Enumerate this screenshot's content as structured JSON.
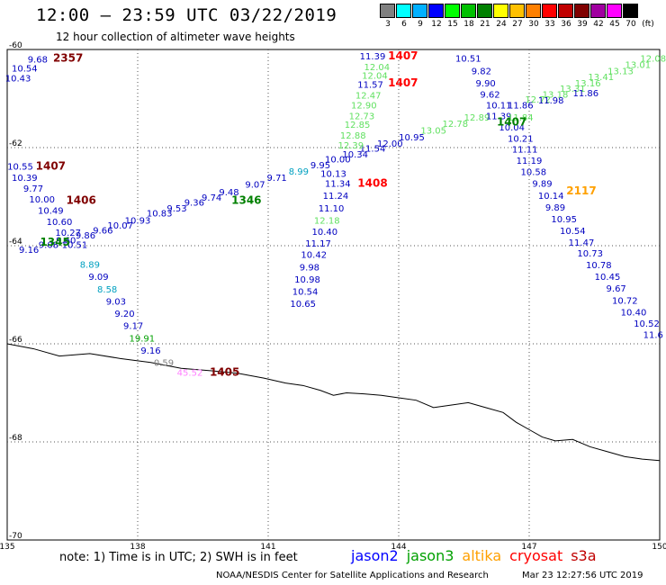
{
  "header": {
    "title": "12:00 – 23:59 UTC 03/22/2019",
    "subtitle": "12 hour collection of altimeter wave heights"
  },
  "scale": {
    "unit": "(ft)",
    "bins": [
      {
        "label": "3",
        "color": "#808080"
      },
      {
        "label": "6",
        "color": "#00ffff"
      },
      {
        "label": "9",
        "color": "#00b0ff"
      },
      {
        "label": "12",
        "color": "#0000ff"
      },
      {
        "label": "15",
        "color": "#00ff00"
      },
      {
        "label": "18",
        "color": "#00c000"
      },
      {
        "label": "21",
        "color": "#008000"
      },
      {
        "label": "24",
        "color": "#ffff00"
      },
      {
        "label": "27",
        "color": "#ffc000"
      },
      {
        "label": "30",
        "color": "#ff8000"
      },
      {
        "label": "33",
        "color": "#ff0000"
      },
      {
        "label": "36",
        "color": "#c00000"
      },
      {
        "label": "39",
        "color": "#800000"
      },
      {
        "label": "42",
        "color": "#a000a0"
      },
      {
        "label": "45",
        "color": "#ff00ff"
      },
      {
        "label": "70",
        "color": "#000000"
      }
    ]
  },
  "map": {
    "lon_min": 135,
    "lon_max": 150,
    "lat_min": -70,
    "lat_max": -60,
    "lon_ticks": [
      "135",
      "138",
      "141",
      "144",
      "147",
      "150"
    ],
    "lat_ticks": [
      "-60",
      "-62",
      "-64",
      "-66",
      "-68",
      "-70"
    ],
    "grid": true
  },
  "coastline": [
    [
      135.0,
      -66.0
    ],
    [
      135.6,
      -66.1
    ],
    [
      136.2,
      -66.25
    ],
    [
      136.9,
      -66.2
    ],
    [
      137.6,
      -66.3
    ],
    [
      138.3,
      -66.38
    ],
    [
      139.0,
      -66.5
    ],
    [
      139.7,
      -66.55
    ],
    [
      140.3,
      -66.6
    ],
    [
      140.9,
      -66.7
    ],
    [
      141.4,
      -66.8
    ],
    [
      141.8,
      -66.85
    ],
    [
      142.2,
      -66.95
    ],
    [
      142.5,
      -67.05
    ],
    [
      142.8,
      -67.0
    ],
    [
      143.2,
      -67.02
    ],
    [
      143.6,
      -67.05
    ],
    [
      144.0,
      -67.1
    ],
    [
      144.4,
      -67.15
    ],
    [
      144.8,
      -67.3
    ],
    [
      145.2,
      -67.25
    ],
    [
      145.6,
      -67.2
    ],
    [
      146.0,
      -67.3
    ],
    [
      146.4,
      -67.4
    ],
    [
      146.7,
      -67.6
    ],
    [
      147.0,
      -67.75
    ],
    [
      147.3,
      -67.9
    ],
    [
      147.6,
      -67.98
    ],
    [
      148.0,
      -67.95
    ],
    [
      148.4,
      -68.1
    ],
    [
      148.8,
      -68.2
    ],
    [
      149.2,
      -68.3
    ],
    [
      149.6,
      -68.35
    ],
    [
      150.0,
      -68.38
    ]
  ],
  "passes": [
    {
      "satellite": "jason2",
      "time": "2357",
      "time_lon": 136.4,
      "time_lat": -60.25,
      "time_color": "#800000",
      "points": [
        [
          135.7,
          -60.27,
          "9.68",
          "#0000c0"
        ],
        [
          135.4,
          -60.45,
          "10.54",
          "#0000c0"
        ],
        [
          135.25,
          -60.65,
          "10.43",
          "#0000c0"
        ]
      ]
    },
    {
      "satellite": "jason2",
      "time": "1407",
      "time_lon": 136.0,
      "time_lat": -62.45,
      "time_color": "#800000",
      "points": [
        [
          135.3,
          -62.45,
          "10.55",
          "#0000c0"
        ],
        [
          135.4,
          -62.68,
          "10.39",
          "#0000c0"
        ],
        [
          135.6,
          -62.9,
          "9.77",
          "#0000c0"
        ],
        [
          135.8,
          -63.12,
          "10.00",
          "#0000c0"
        ],
        [
          136.0,
          -63.35,
          "10.49",
          "#0000c0"
        ],
        [
          136.2,
          -63.58,
          "10.60",
          "#0000c0"
        ],
        [
          136.4,
          -63.8,
          "10.27",
          "#0000c0"
        ],
        [
          136.55,
          -64.05,
          "10.51",
          "#0000c0"
        ],
        [
          136.9,
          -64.45,
          "8.89",
          "#00a0c0"
        ],
        [
          137.1,
          -64.7,
          "9.09",
          "#0000c0"
        ],
        [
          137.3,
          -64.95,
          "8.58",
          "#00a0c0"
        ],
        [
          137.5,
          -65.2,
          "9.03",
          "#0000c0"
        ],
        [
          137.7,
          -65.45,
          "9.20",
          "#0000c0"
        ],
        [
          137.9,
          -65.7,
          "9.17",
          "#0000c0"
        ],
        [
          138.1,
          -65.95,
          "19.91",
          "#00a000"
        ],
        [
          138.3,
          -66.2,
          "9.16",
          "#0000c0"
        ],
        [
          138.6,
          -66.45,
          "0.59",
          "#808080"
        ]
      ]
    },
    {
      "satellite": "jason2",
      "time": "1406",
      "time_lon": 136.7,
      "time_lat": -63.15,
      "time_color": "#800000",
      "points": []
    },
    {
      "satellite": "jason3",
      "time": "1346",
      "time_lon": 140.5,
      "time_lat": -63.15,
      "time_color": "#008000",
      "points": [
        [
          135.5,
          -64.15,
          "9.16",
          "#0000c0"
        ],
        [
          135.95,
          -64.05,
          "9.08",
          "#0000c0"
        ],
        [
          136.35,
          -63.95,
          "9.60",
          "#0000c0"
        ],
        [
          136.8,
          -63.85,
          "9.86",
          "#0000c0"
        ],
        [
          137.2,
          -63.75,
          "9.66",
          "#0000c0"
        ],
        [
          137.6,
          -63.65,
          "10.07",
          "#0000c0"
        ],
        [
          138.0,
          -63.55,
          "10.93",
          "#0000c0"
        ],
        [
          138.5,
          -63.4,
          "10.83",
          "#0000c0"
        ],
        [
          138.9,
          -63.3,
          "9.53",
          "#0000c0"
        ],
        [
          139.3,
          -63.18,
          "9.36",
          "#0000c0"
        ],
        [
          139.7,
          -63.08,
          "9.74",
          "#0000c0"
        ],
        [
          140.1,
          -62.97,
          "9.48",
          "#0000c0"
        ],
        [
          140.7,
          -62.82,
          "9.07",
          "#0000c0"
        ],
        [
          141.2,
          -62.68,
          "9.71",
          "#0000c0"
        ],
        [
          141.7,
          -62.55,
          "8.99",
          "#00a0c0"
        ],
        [
          142.2,
          -62.42,
          "9.95",
          "#0000c0"
        ],
        [
          142.6,
          -62.3,
          "10.00",
          "#0000c0"
        ],
        [
          143.0,
          -62.2,
          "10.34",
          "#0000c0"
        ],
        [
          143.4,
          -62.08,
          "11.54",
          "#0000c0"
        ],
        [
          143.8,
          -61.98,
          "12.00",
          "#0000c0"
        ],
        [
          144.3,
          -61.85,
          "10.95",
          "#0000c0"
        ],
        [
          144.8,
          -61.72,
          "13.05",
          "#60e060"
        ],
        [
          145.3,
          -61.58,
          "12.78",
          "#60e060"
        ],
        [
          145.8,
          -61.45,
          "12.89",
          "#60e060"
        ],
        [
          147.2,
          -61.08,
          "12.72",
          "#60e060"
        ],
        [
          147.6,
          -60.98,
          "13.18",
          "#60e060"
        ],
        [
          148.0,
          -60.86,
          "13.31",
          "#60e060"
        ],
        [
          148.35,
          -60.75,
          "13.16",
          "#60e060"
        ],
        [
          148.65,
          -60.62,
          "13.41",
          "#60e060"
        ],
        [
          149.1,
          -60.5,
          "13.13",
          "#60e060"
        ],
        [
          149.5,
          -60.38,
          "13.01",
          "#60e060"
        ],
        [
          149.85,
          -60.25,
          "12.08",
          "#60e060"
        ]
      ]
    },
    {
      "satellite": "jason3",
      "time": "1345",
      "time_lon": 136.1,
      "time_lat": -64.0,
      "time_color": "#008000",
      "points": []
    },
    {
      "satellite": "jason2",
      "time": "1408",
      "time_lon": 143.4,
      "time_lat": -62.8,
      "time_color": "#ff0000",
      "points": [
        [
          142.5,
          -62.6,
          "10.13",
          "#0000c0"
        ],
        [
          142.6,
          -62.8,
          "11.34",
          "#0000c0"
        ],
        [
          142.55,
          -63.05,
          "11.24",
          "#0000c0"
        ],
        [
          142.45,
          -63.3,
          "11.10",
          "#0000c0"
        ],
        [
          142.35,
          -63.55,
          "12.18",
          "#60e060"
        ],
        [
          142.3,
          -63.78,
          "10.40",
          "#0000c0"
        ],
        [
          142.15,
          -64.02,
          "11.17",
          "#0000c0"
        ],
        [
          142.05,
          -64.25,
          "10.42",
          "#0000c0"
        ],
        [
          141.95,
          -64.5,
          "9.98",
          "#0000c0"
        ],
        [
          141.9,
          -64.75,
          "10.98",
          "#0000c0"
        ],
        [
          141.85,
          -65.0,
          "10.54",
          "#0000c0"
        ],
        [
          141.8,
          -65.25,
          "10.65",
          "#0000c0"
        ]
      ]
    },
    {
      "satellite": "jason3",
      "time": "1407",
      "time_lon": 144.1,
      "time_lat": -60.2,
      "time_color": "#ff0000",
      "points": [
        [
          143.4,
          -60.2,
          "11.39",
          "#0000c0"
        ],
        [
          143.5,
          -60.42,
          "12.04",
          "#60e060"
        ],
        [
          143.45,
          -60.6,
          "12.04",
          "#60e060"
        ],
        [
          143.35,
          -60.78,
          "11.57",
          "#0000c0"
        ],
        [
          143.3,
          -61.0,
          "12.47",
          "#60e060"
        ],
        [
          143.2,
          -61.2,
          "12.90",
          "#60e060"
        ],
        [
          143.15,
          -61.42,
          "12.73",
          "#60e060"
        ],
        [
          143.05,
          -61.6,
          "12.85",
          "#60e060"
        ],
        [
          142.95,
          -61.82,
          "12.88",
          "#60e060"
        ],
        [
          142.9,
          -62.02,
          "12.39",
          "#60e060"
        ]
      ]
    },
    {
      "satellite": "cryosat",
      "time": "1407",
      "time_lon": 144.1,
      "time_lat": -60.75,
      "time_color": "#ff0000",
      "points": []
    },
    {
      "satellite": "jason2",
      "time": "2117",
      "time_lon": 148.2,
      "time_lat": -62.95,
      "time_color": "#ffa000",
      "points": [
        [
          145.6,
          -60.25,
          "10.51",
          "#0000c0"
        ],
        [
          145.9,
          -60.5,
          "9.82",
          "#0000c0"
        ],
        [
          146.0,
          -60.75,
          "9.90",
          "#0000c0"
        ],
        [
          146.1,
          -60.98,
          "9.62",
          "#0000c0"
        ],
        [
          146.3,
          -61.2,
          "10.11",
          "#0000c0"
        ],
        [
          146.8,
          -61.2,
          "11.86",
          "#0000c0"
        ],
        [
          147.5,
          -61.1,
          "11.98",
          "#0000c0"
        ],
        [
          148.3,
          -60.95,
          "11.86",
          "#0000c0"
        ],
        [
          146.3,
          -61.42,
          "11.39",
          "#0000c0"
        ],
        [
          146.8,
          -61.45,
          "11.84",
          "#60e060"
        ],
        [
          146.6,
          -61.65,
          "10.04",
          "#0000c0"
        ],
        [
          146.8,
          -61.88,
          "10.21",
          "#0000c0"
        ],
        [
          146.9,
          -62.1,
          "11.11",
          "#0000c0"
        ],
        [
          147.0,
          -62.33,
          "11.19",
          "#0000c0"
        ],
        [
          147.1,
          -62.56,
          "10.58",
          "#0000c0"
        ],
        [
          147.3,
          -62.8,
          "9.89",
          "#0000c0"
        ],
        [
          147.5,
          -63.05,
          "10.14",
          "#0000c0"
        ],
        [
          147.6,
          -63.28,
          "9.89",
          "#0000c0"
        ],
        [
          147.8,
          -63.52,
          "10.95",
          "#0000c0"
        ],
        [
          148.0,
          -63.76,
          "10.54",
          "#0000c0"
        ],
        [
          148.2,
          -64.0,
          "11.47",
          "#0000c0"
        ],
        [
          148.4,
          -64.22,
          "10.73",
          "#0000c0"
        ],
        [
          148.6,
          -64.46,
          "10.78",
          "#0000c0"
        ],
        [
          148.8,
          -64.7,
          "10.45",
          "#0000c0"
        ],
        [
          149.0,
          -64.94,
          "9.67",
          "#0000c0"
        ],
        [
          149.2,
          -65.18,
          "10.72",
          "#0000c0"
        ],
        [
          149.4,
          -65.42,
          "10.40",
          "#0000c0"
        ],
        [
          149.7,
          -65.65,
          "10.52",
          "#0000c0"
        ],
        [
          149.85,
          -65.88,
          "11.6",
          "#0000c0"
        ]
      ]
    },
    {
      "satellite": "jason3",
      "time": "1407",
      "time_lon": 146.6,
      "time_lat": -61.55,
      "time_color": "#008000",
      "points": []
    },
    {
      "satellite": "jason2",
      "time": "1405",
      "time_lon": 140.0,
      "time_lat": -66.65,
      "time_color": "#800000",
      "points": [
        [
          139.2,
          -66.65,
          "45.52",
          "#ff80ff"
        ]
      ]
    }
  ],
  "footer": {
    "note": "note:  1) Time is in UTC;  2) SWH is in feet",
    "satellites": [
      {
        "name": "jason2",
        "color": "#0000ff"
      },
      {
        "name": "jason3",
        "color": "#00a000"
      },
      {
        "name": "altika",
        "color": "#ffa000"
      },
      {
        "name": "cryosat",
        "color": "#ff0000"
      },
      {
        "name": "s3a",
        "color": "#c00000"
      }
    ],
    "credit": "NOAA/NESDIS Center for Satellite Applications and Research",
    "timestamp": "Mar 23 12:27:56 UTC 2019"
  }
}
